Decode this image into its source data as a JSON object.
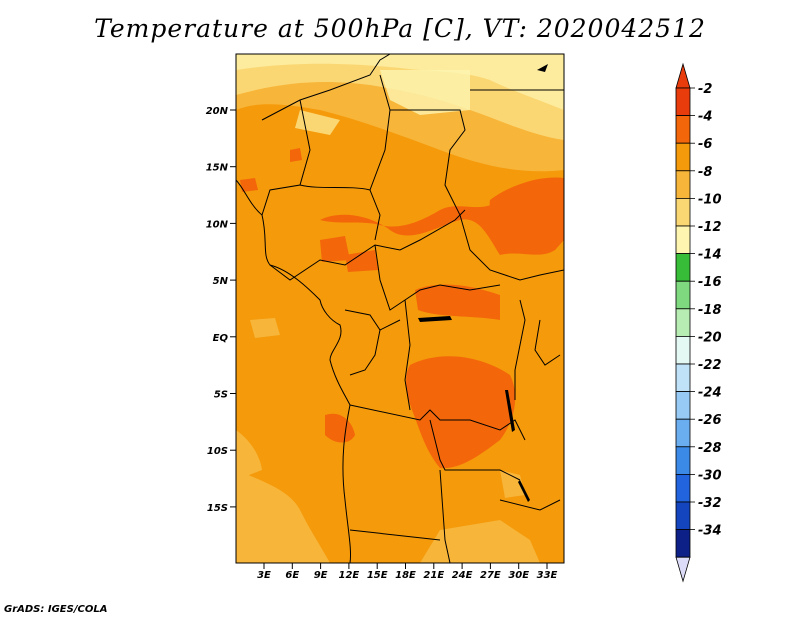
{
  "title": "Temperature at 500hPa [C], VT: 2020042512",
  "credit": "GrADS: IGES/COLA",
  "lat_labels": [
    "20N",
    "15N",
    "10N",
    "5N",
    "EQ",
    "5S",
    "10S",
    "15S"
  ],
  "lon_labels": [
    "3E",
    "6E",
    "9E",
    "12E",
    "15E",
    "18E",
    "21E",
    "24E",
    "27E",
    "30E",
    "33E"
  ],
  "colorbar": {
    "labels": [
      "-2",
      "-4",
      "-6",
      "-8",
      "-10",
      "-12",
      "-14",
      "-16",
      "-18",
      "-20",
      "-22",
      "-24",
      "-26",
      "-28",
      "-30",
      "-32",
      "-34"
    ],
    "colors": [
      "#e83c0c",
      "#f4660a",
      "#f59a0a",
      "#f7b53a",
      "#fbd774",
      "#fdf5b0",
      "#38bd38",
      "#7fd97f",
      "#b7ecb2",
      "#e4f8f4",
      "#bfe2f8",
      "#97cbf5",
      "#6aaef0",
      "#3c8ae8",
      "#2164dd",
      "#1445bf",
      "#0d2087",
      "#dcdcf8"
    ],
    "top_arrow_color": "#e83c0c",
    "bottom_arrow_color": "#dcdcf8"
  }
}
